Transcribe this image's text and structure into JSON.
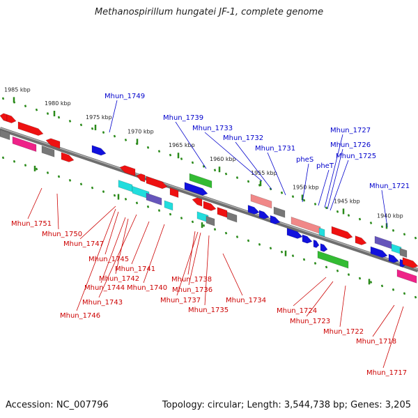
{
  "title": "Methanospirillum hungatei JF-1, complete genome",
  "footer": {
    "accession": "Accession: NC_007796",
    "summary": "Topology: circular; Length: 3,544,738 bp; Genes: 3,205"
  },
  "colors": {
    "backbone": "#808080",
    "tick": "#2a8a1a",
    "label_top": "#0000cc",
    "label_bottom": "#cc0000",
    "red": "#ee1111",
    "blue": "#1111dd",
    "green": "#33bb33",
    "cyan": "#22dddd",
    "salmon": "#f08888",
    "magenta": "#ee2288",
    "gray": "#777777",
    "purple": "#6655bb"
  },
  "scale_labels": [
    "1985 kbp",
    "1980 kbp",
    "1975 kbp",
    "1970 kbp",
    "1965 kbp",
    "1960 kbp",
    "1955 kbp",
    "1950 kbp",
    "1945 kbp",
    "1940 kbp"
  ],
  "top_labels": [
    "Mhun_1749",
    "Mhun_1739",
    "Mhun_1733",
    "Mhun_1732",
    "Mhun_1731",
    "pheS",
    "pheT",
    "Mhun_1727",
    "Mhun_1726",
    "Mhun_1725",
    "Mhun_1721"
  ],
  "bottom_labels": [
    "Mhun_1751",
    "Mhun_1750",
    "Mhun_1747",
    "Mhun_1745",
    "Mhun_1741",
    "Mhun_1742",
    "Mhun_1744",
    "Mhun_1740",
    "Mhun_1743",
    "Mhun_1746",
    "Mhun_1738",
    "Mhun_1736",
    "Mhun_1737",
    "Mhun_1735",
    "Mhun_1734",
    "Mhun_1724",
    "Mhun_1723",
    "Mhun_1722",
    "Mhun_1718",
    "Mhun_1717"
  ]
}
